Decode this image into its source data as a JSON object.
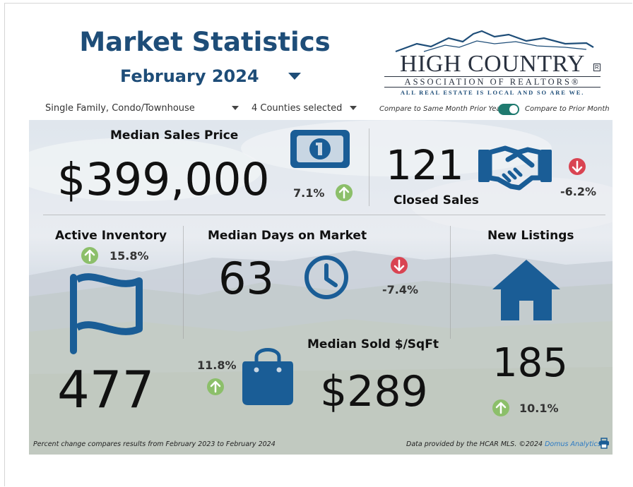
{
  "header": {
    "title": "Market Statistics",
    "period": "February 2024"
  },
  "logo": {
    "name": "HIGH COUNTRY",
    "registered": "R",
    "subtitle": "ASSOCIATION OF REALTORS®",
    "tagline": "ALL REAL ESTATE IS LOCAL AND SO ARE WE."
  },
  "filters": {
    "property_type": "Single Family, Condo/Townhouse",
    "counties": "4 Counties selected",
    "compare_left": "Compare to Same Month Prior Year",
    "compare_right": "Compare to Prior Month",
    "toggle_on": true
  },
  "stats": {
    "median_sales_price": {
      "label": "Median Sales Price",
      "value": "$399,000",
      "change": "7.1%",
      "direction": "up"
    },
    "closed_sales": {
      "label": "Closed Sales",
      "value": "121",
      "change": "-6.2%",
      "direction": "down"
    },
    "active_inventory": {
      "label": "Active Inventory",
      "value": "477",
      "change": "15.8%",
      "direction": "up"
    },
    "median_days_on_market": {
      "label": "Median Days on Market",
      "value": "63",
      "change": "-7.4%",
      "direction": "down"
    },
    "new_listings": {
      "label": "New Listings",
      "value": "185",
      "change": "10.1%",
      "direction": "up"
    },
    "median_sold_per_sqft": {
      "label": "Median Sold $/SqFt",
      "value": "$289",
      "change": "11.8%",
      "direction": "up"
    }
  },
  "footer": {
    "note": "Percent change compares results from February 2023 to February 2024",
    "credit": "Data provided by the HCAR MLS. ©2024",
    "credit_link": "Domus Analytics"
  },
  "colors": {
    "brand_blue": "#1e4d78",
    "icon_blue": "#1a5d96",
    "up_green": "#8cbf6a",
    "down_red": "#d94452",
    "toggle_teal": "#1f7a6f"
  },
  "icons": [
    "caret-down-icon",
    "dollar-bill-icon",
    "handshake-icon",
    "flag-icon",
    "clock-icon",
    "home-icon",
    "shopping-bag-icon",
    "arrow-up-icon",
    "arrow-down-icon",
    "print-icon",
    "mountain-logo-icon"
  ]
}
